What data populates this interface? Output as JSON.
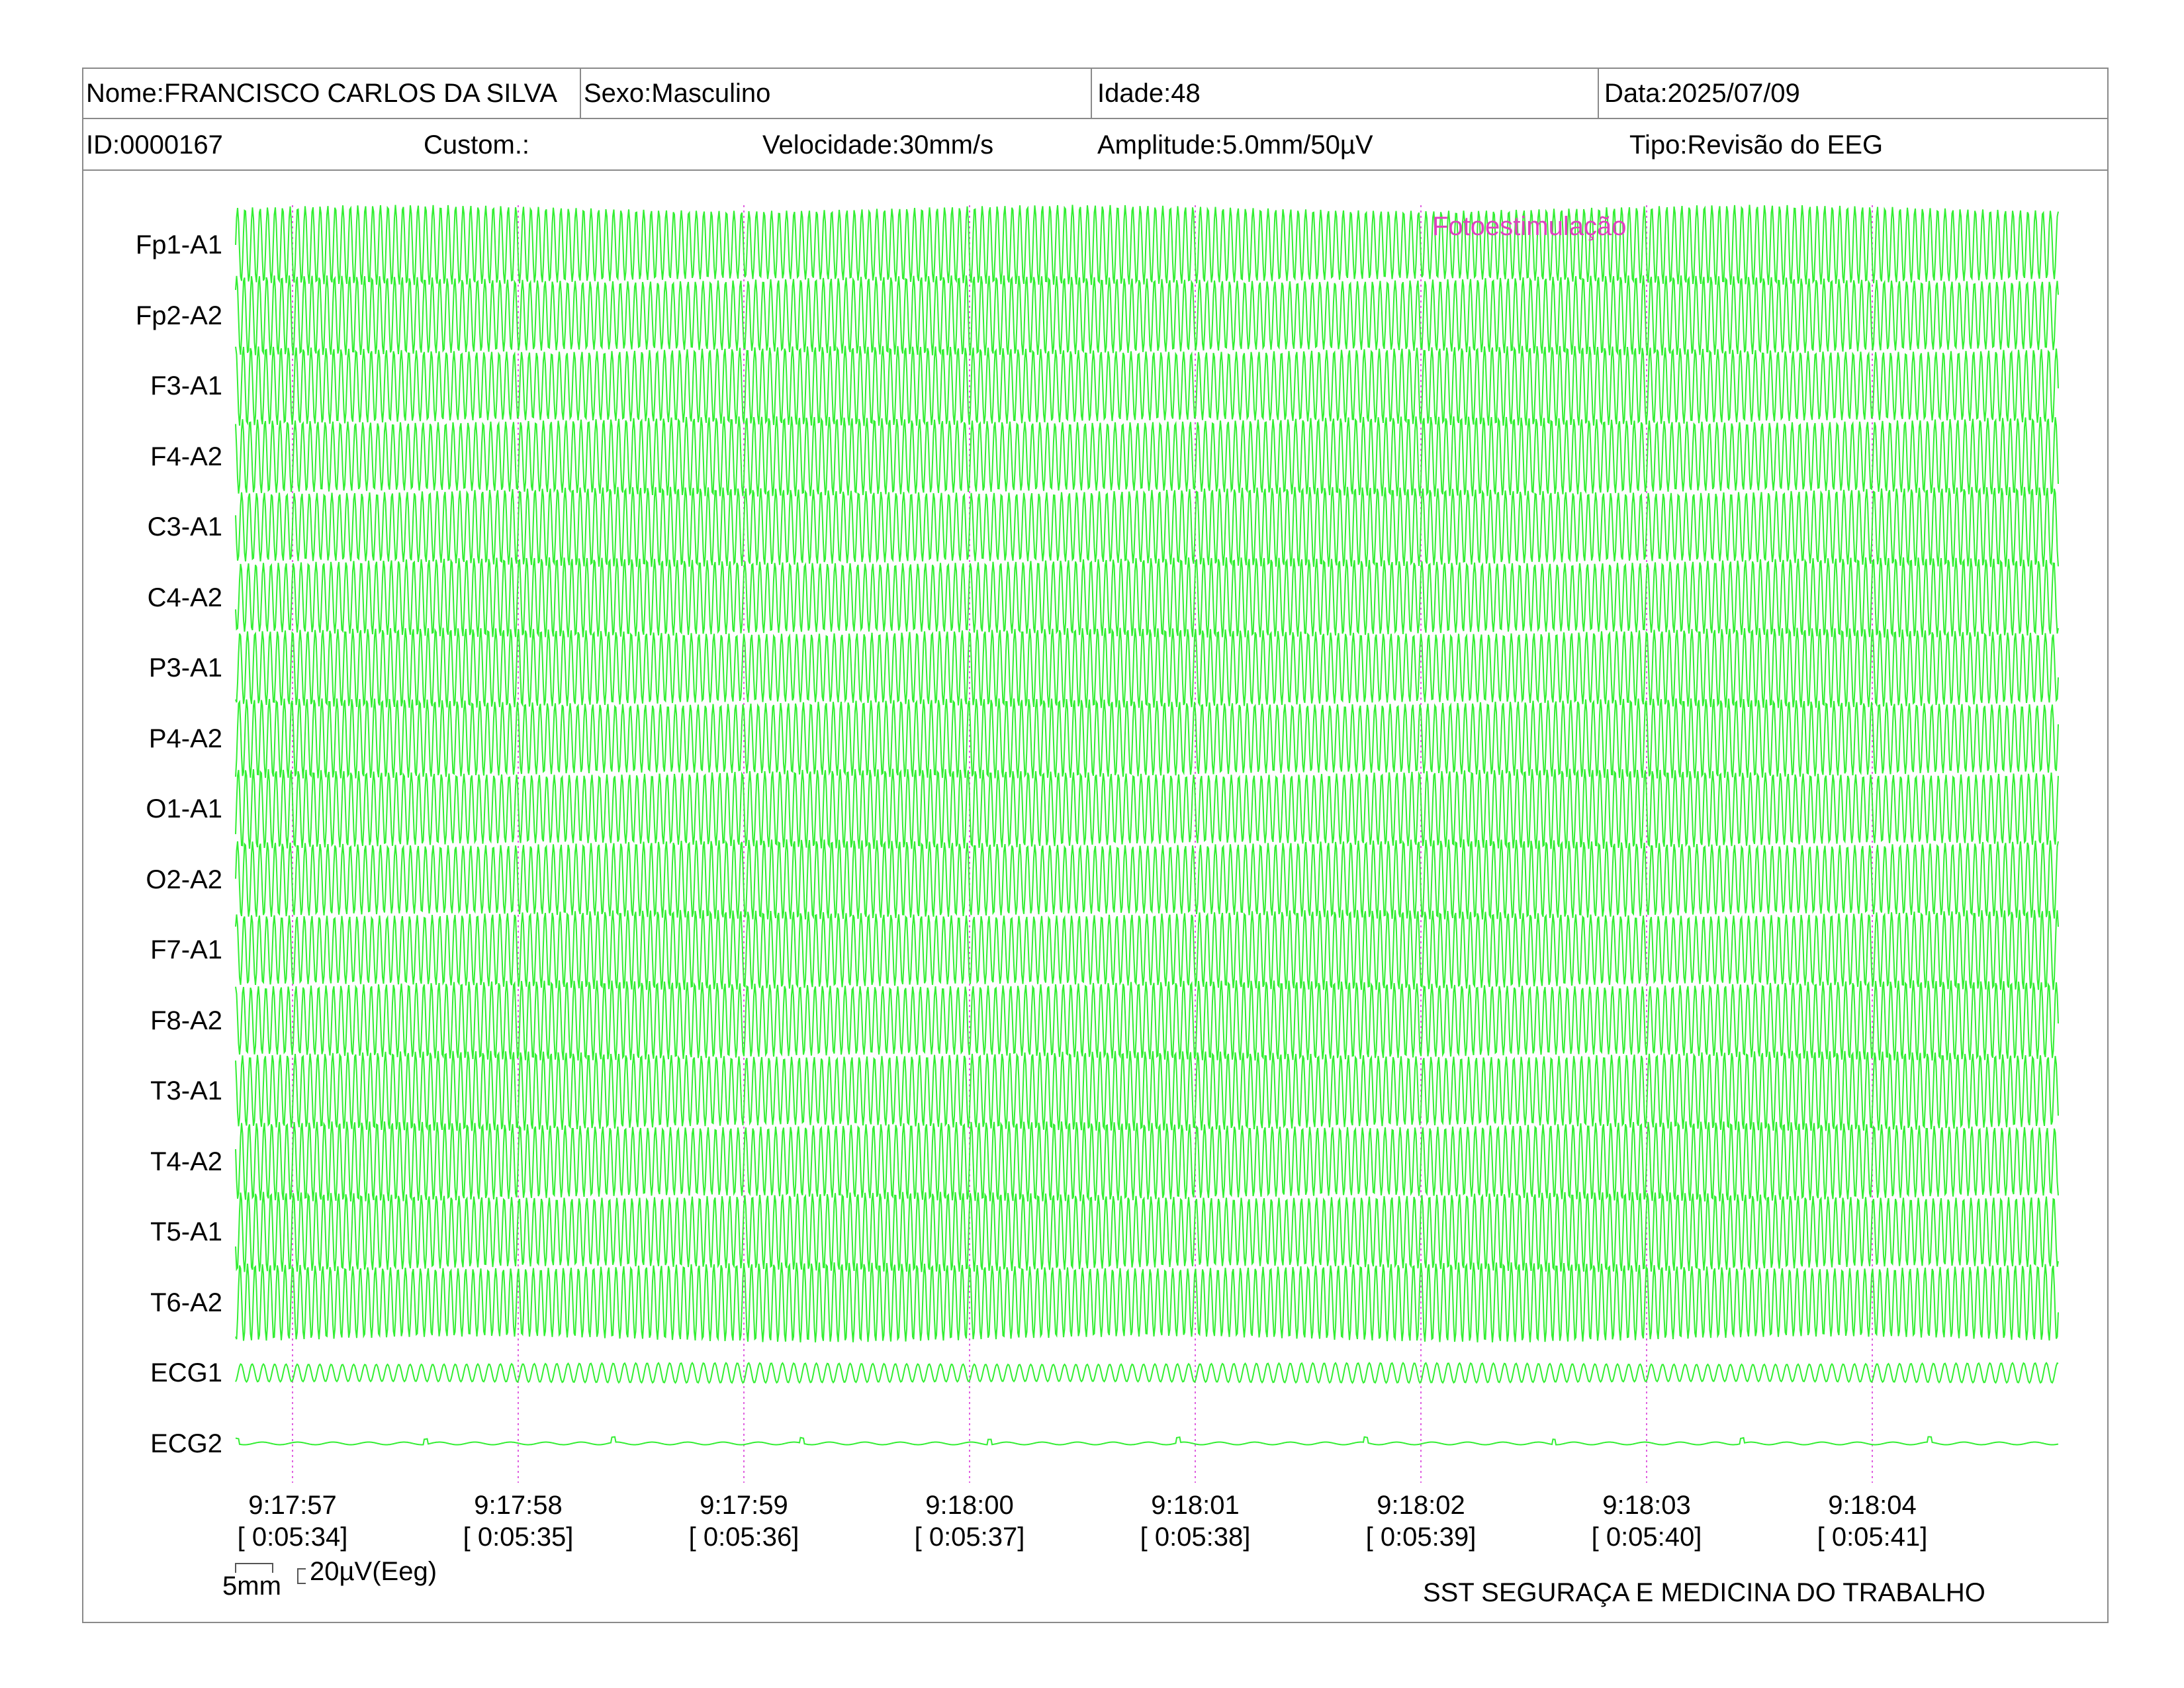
{
  "header": {
    "nome": "Nome:FRANCISCO CARLOS DA SILVA",
    "sexo": "Sexo:Masculino",
    "idade": "Idade:48",
    "data": "Data:2025/07/09",
    "id": "ID:0000167",
    "custom": "Custom.:",
    "velocidade": "Velocidade:30mm/s",
    "amplitude": "Amplitude:5.0mm/50µV",
    "tipo": "Tipo:Revisão do EEG"
  },
  "annotation": "Fotoestimulação",
  "calibration": {
    "time_label": "5mm",
    "amp_label": "20µV(Eeg)"
  },
  "footer": {
    "organization": "SST SEGURAÇA E MEDICINA DO TRABALHO"
  },
  "colors": {
    "trace": "#33ee33",
    "marker": "#e060e0",
    "annotation": "#e040c0",
    "border": "#8a8a8a"
  },
  "chart_data": {
    "type": "line",
    "channels": [
      "Fp1-A1",
      "Fp2-A2",
      "F3-A1",
      "F4-A2",
      "C3-A1",
      "C4-A2",
      "P3-A1",
      "P4-A2",
      "O1-A1",
      "O2-A2",
      "F7-A1",
      "F8-A2",
      "T3-A1",
      "T4-A2",
      "T5-A1",
      "T6-A2",
      "ECG1",
      "ECG2"
    ],
    "time_labels": [
      "9:17:57",
      "9:17:58",
      "9:17:59",
      "9:18:00",
      "9:18:01",
      "9:18:02",
      "9:18:03",
      "9:18:04"
    ],
    "elapsed_labels": [
      "[ 0:05:34]",
      "[ 0:05:35]",
      "[ 0:05:36]",
      "[ 0:05:37]",
      "[ 0:05:38]",
      "[ 0:05:39]",
      "[ 0:05:40]",
      "[ 0:05:41]"
    ],
    "eeg_frequency_hz": 30,
    "ecg1_frequency_hz": 20,
    "grid": "dotted vertical per second"
  }
}
